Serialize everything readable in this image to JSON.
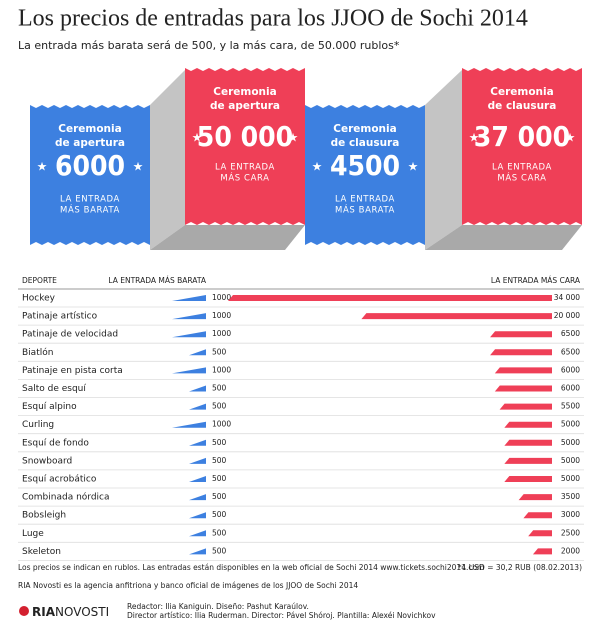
{
  "header": {
    "title": "Los precios de entradas para los JJOO de Sochi 2014",
    "subtitle": "La entrada más barata será de 500, y la más cara, de 50.000 rublos*"
  },
  "tickets": [
    {
      "title_lines": [
        "Ceremonia",
        "de apertura"
      ],
      "price": "6000",
      "note_lines": [
        "LA ENTRADA",
        "MÁS BARATA"
      ],
      "color": "#3d80e0"
    },
    {
      "title_lines": [
        "Ceremonia",
        "de apertura"
      ],
      "price": "50 000",
      "note_lines": [
        "LA ENTRADA",
        "MÁS CARA"
      ],
      "color": "#ef3f57"
    },
    {
      "title_lines": [
        "Ceremonia",
        "de clausura"
      ],
      "price": "4500",
      "note_lines": [
        "LA ENTRADA",
        "MÁS BARATA"
      ],
      "color": "#3d80e0"
    },
    {
      "title_lines": [
        "Ceremonia",
        "de clausura"
      ],
      "price": "37 000",
      "note_lines": [
        "LA ENTRADA",
        "MÁS CARA"
      ],
      "color": "#ef3f57"
    }
  ],
  "chart_data": {
    "type": "bar",
    "category_label": "DEPORTE",
    "categories": [
      "Hockey",
      "Patinaje artístico",
      "Patinaje de velocidad",
      "Biatlón",
      "Patinaje en pista corta",
      "Salto de esquí",
      "Esquí alpino",
      "Curling",
      "Esquí de fondo",
      "Snowboard",
      "Esquí acrobático",
      "Combinada nórdica",
      "Bobsleigh",
      "Luge",
      "Skeleton"
    ],
    "series": [
      {
        "name": "LA ENTRADA MÁS BARATA",
        "color": "#3d80e0",
        "values": [
          1000,
          1000,
          1000,
          500,
          1000,
          500,
          500,
          1000,
          500,
          500,
          500,
          500,
          500,
          500,
          500
        ]
      },
      {
        "name": "LA ENTRADA MÁS CARA",
        "color": "#ef3f57",
        "values": [
          34000,
          20000,
          6500,
          6500,
          6000,
          6000,
          5500,
          5000,
          5000,
          5000,
          5000,
          3500,
          3000,
          2500,
          2000
        ],
        "value_labels": [
          "34 000",
          "20 000",
          "6500",
          "6500",
          "6000",
          "6000",
          "5500",
          "5000",
          "5000",
          "5000",
          "5000",
          "3500",
          "3000",
          "2500",
          "2000"
        ]
      }
    ]
  },
  "footer": {
    "note": "Los precios se indican en rublos. Las entradas están disponibles en la web oficial de Sochi 2014 www.tickets.sochi2014.com",
    "rate": "*1 USD = 30,2 RUB (08.02.2013)",
    "agency": "RIA Novosti es la agencia anfitriona y banco oficial de imágenes de los JJOO de Sochi 2014",
    "credits": [
      "Redactor: Ilia Kaniguin. Diseño: Pashut Karaúlov.",
      "Director artístico: Ilia Ruderman. Director: Pável Shóroj. Plantilla: Alexéi Novichkov"
    ],
    "logo": [
      "RIA",
      "NOVOSTI"
    ]
  }
}
